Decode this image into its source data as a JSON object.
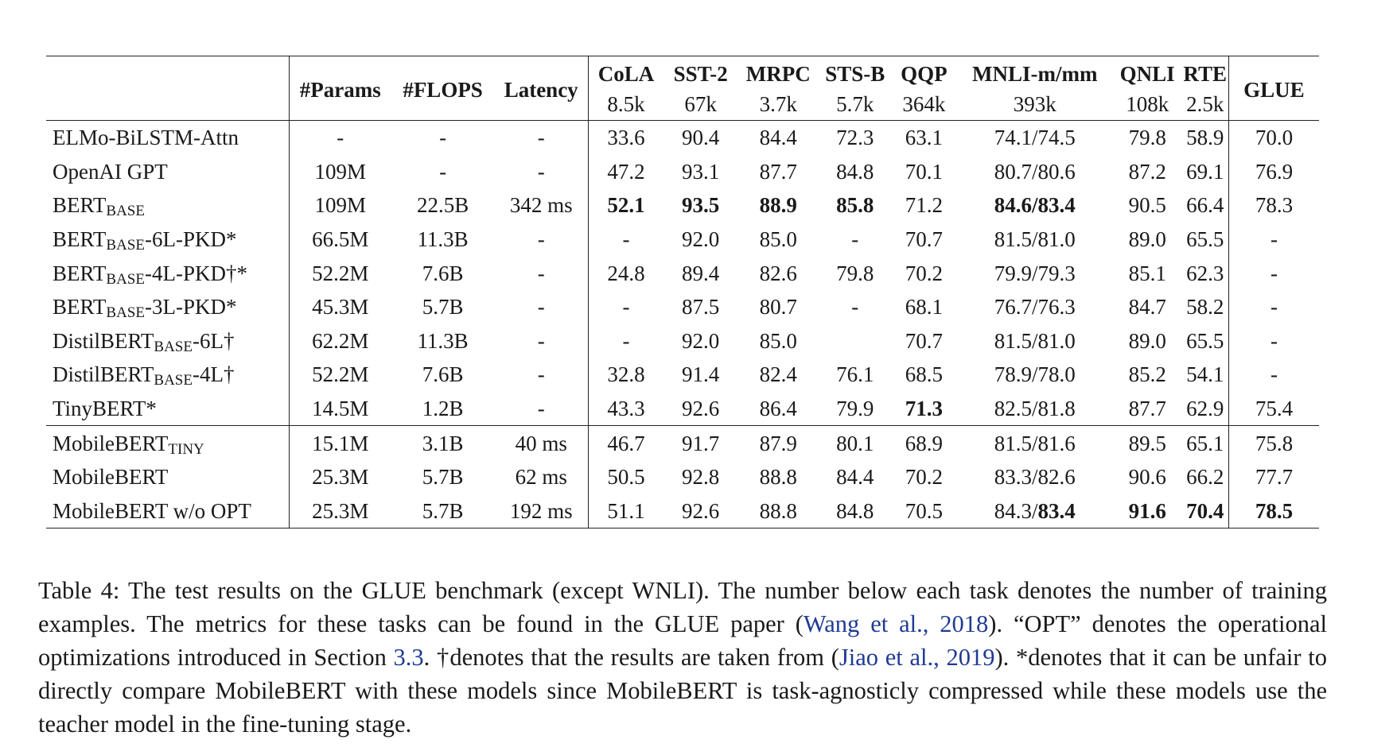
{
  "table": {
    "header": {
      "params": "#Params",
      "flops": "#FLOPS",
      "latency": "Latency",
      "tasks": [
        {
          "name": "CoLA",
          "size": "8.5k"
        },
        {
          "name": "SST-2",
          "size": "67k"
        },
        {
          "name": "MRPC",
          "size": "3.7k"
        },
        {
          "name": "STS-B",
          "size": "5.7k"
        },
        {
          "name": "QQP",
          "size": "364k"
        },
        {
          "name": "MNLI-m/mm",
          "size": "393k"
        },
        {
          "name": "QNLI",
          "size": "108k"
        },
        {
          "name": "RTE",
          "size": "2.5k"
        }
      ],
      "glue": "GLUE"
    },
    "rows": [
      {
        "model": "ELMo-BiLSTM-Attn",
        "params": "-",
        "flops": "-",
        "latency": "-",
        "cola": "33.6",
        "sst2": "90.4",
        "mrpc": "84.4",
        "stsb": "72.3",
        "qqp": "63.1",
        "mnli": "74.1/74.5",
        "qnli": "79.8",
        "rte": "58.9",
        "glue": "70.0"
      },
      {
        "model": "OpenAI GPT",
        "params": "109M",
        "flops": "-",
        "latency": "-",
        "cola": "47.2",
        "sst2": "93.1",
        "mrpc": "87.7",
        "stsb": "84.8",
        "qqp": "70.1",
        "mnli": "80.7/80.6",
        "qnli": "87.2",
        "rte": "69.1",
        "glue": "76.9"
      },
      {
        "model": "BERT",
        "model_sub": "BASE",
        "model_suffix": "",
        "params": "109M",
        "flops": "22.5B",
        "latency": "342 ms",
        "cola": "52.1",
        "sst2": "93.5",
        "mrpc": "88.9",
        "stsb": "85.8",
        "qqp": "71.2",
        "mnli": "84.6/83.4",
        "qnli": "90.5",
        "rte": "66.4",
        "glue": "78.3"
      },
      {
        "model": "BERT",
        "model_sub": "BASE",
        "model_suffix": "-6L-PKD*",
        "params": "66.5M",
        "flops": "11.3B",
        "latency": "-",
        "cola": "-",
        "sst2": "92.0",
        "mrpc": "85.0",
        "stsb": "-",
        "qqp": "70.7",
        "mnli": "81.5/81.0",
        "qnli": "89.0",
        "rte": "65.5",
        "glue": "-"
      },
      {
        "model": "BERT",
        "model_sub": "BASE",
        "model_suffix": "-4L-PKD†*",
        "params": "52.2M",
        "flops": "7.6B",
        "latency": "-",
        "cola": "24.8",
        "sst2": "89.4",
        "mrpc": "82.6",
        "stsb": "79.8",
        "qqp": "70.2",
        "mnli": "79.9/79.3",
        "qnli": "85.1",
        "rte": "62.3",
        "glue": "-"
      },
      {
        "model": "BERT",
        "model_sub": "BASE",
        "model_suffix": "-3L-PKD*",
        "params": "45.3M",
        "flops": "5.7B",
        "latency": "-",
        "cola": "-",
        "sst2": "87.5",
        "mrpc": "80.7",
        "stsb": "-",
        "qqp": "68.1",
        "mnli": "76.7/76.3",
        "qnli": "84.7",
        "rte": "58.2",
        "glue": "-"
      },
      {
        "model": "DistilBERT",
        "model_sub": "BASE",
        "model_suffix": "-6L†",
        "params": "62.2M",
        "flops": "11.3B",
        "latency": "-",
        "cola": "-",
        "sst2": "92.0",
        "mrpc": "85.0",
        "stsb": "",
        "qqp": "70.7",
        "mnli": "81.5/81.0",
        "qnli": "89.0",
        "rte": "65.5",
        "glue": "-"
      },
      {
        "model": "DistilBERT",
        "model_sub": "BASE",
        "model_suffix": "-4L†",
        "params": "52.2M",
        "flops": "7.6B",
        "latency": "-",
        "cola": "32.8",
        "sst2": "91.4",
        "mrpc": "82.4",
        "stsb": "76.1",
        "qqp": "68.5",
        "mnli": "78.9/78.0",
        "qnli": "85.2",
        "rte": "54.1",
        "glue": "-"
      },
      {
        "model": "TinyBERT*",
        "params": "14.5M",
        "flops": "1.2B",
        "latency": "-",
        "cola": "43.3",
        "sst2": "92.6",
        "mrpc": "86.4",
        "stsb": "79.9",
        "qqp": "71.3",
        "mnli": "82.5/81.8",
        "qnli": "87.7",
        "rte": "62.9",
        "glue": "75.4"
      },
      {
        "model": "MobileBERT",
        "model_sub": "TINY",
        "model_suffix": "",
        "params": "15.1M",
        "flops": "3.1B",
        "latency": "40 ms",
        "cola": "46.7",
        "sst2": "91.7",
        "mrpc": "87.9",
        "stsb": "80.1",
        "qqp": "68.9",
        "mnli": "81.5/81.6",
        "qnli": "89.5",
        "rte": "65.1",
        "glue": "75.8"
      },
      {
        "model": "MobileBERT",
        "params": "25.3M",
        "flops": "5.7B",
        "latency": "62 ms",
        "cola": "50.5",
        "sst2": "92.8",
        "mrpc": "88.8",
        "stsb": "84.4",
        "qqp": "70.2",
        "mnli": "83.3/82.6",
        "qnli": "90.6",
        "rte": "66.2",
        "glue": "77.7"
      },
      {
        "model": "MobileBERT w/o OPT",
        "params": "25.3M",
        "flops": "5.7B",
        "latency": "192 ms",
        "cola": "51.1",
        "sst2": "92.6",
        "mrpc": "88.8",
        "stsb": "84.8",
        "qqp": "70.5",
        "mnli_a": "84.3/",
        "mnli_b": "83.4",
        "qnli": "91.6",
        "rte": "70.4",
        "glue": "78.5"
      }
    ]
  },
  "caption": {
    "t1": "Table 4: The test results on the GLUE benchmark (except WNLI). The number below each task denotes the number of training examples. The metrics for these tasks can be found in the GLUE paper (",
    "ref1": "Wang et al., 2018",
    "t2": "). “OPT” denotes the operational optimizations introduced in Section ",
    "ref2": "3.3",
    "t3": ". †denotes that the results are taken from (",
    "ref3": "Jiao et al., 2019",
    "t4": "). *denotes that it can be unfair to directly compare MobileBERT with these models since MobileBERT is task-agnosticly compressed while these models use the teacher model in the fine-tuning stage."
  }
}
